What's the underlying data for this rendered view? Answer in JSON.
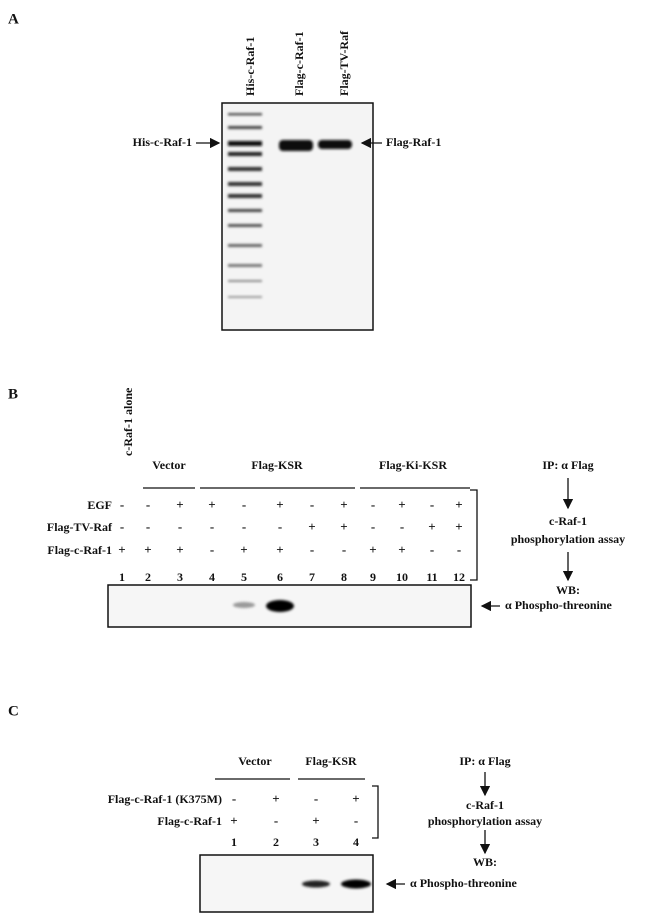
{
  "panel_a": {
    "label": "A",
    "lanes": [
      "His-c-Raf-1",
      "Flag-c-Raf-1",
      "Flag-TV-Raf"
    ],
    "left_marker": "His-c-Raf-1",
    "right_marker": "Flag-Raf-1"
  },
  "panel_b": {
    "label": "B",
    "single_lane": "c-Raf-1 alone",
    "groups": [
      "Vector",
      "Flag-KSR",
      "Flag-Ki-KSR"
    ],
    "rows": [
      {
        "name": "EGF",
        "signs": [
          "-",
          "-",
          "+",
          "+",
          "-",
          "+",
          "-",
          "+",
          "-",
          "+",
          "-",
          "+"
        ]
      },
      {
        "name": "Flag-TV-Raf",
        "signs": [
          "-",
          "-",
          "-",
          "-",
          "-",
          "-",
          "+",
          "+",
          "-",
          "-",
          "+",
          "+"
        ]
      },
      {
        "name": "Flag-c-Raf-1",
        "signs": [
          "+",
          "+",
          "+",
          "-",
          "+",
          "+",
          "-",
          "-",
          "+",
          "+",
          "-",
          "-"
        ]
      }
    ],
    "lane_numbers": [
      1,
      2,
      3,
      4,
      5,
      6,
      7,
      8,
      9,
      10,
      11,
      12
    ],
    "readout": "α Phospho-threonine",
    "workflow": [
      "IP: α Flag",
      "c-Raf-1",
      "phosphorylation assay",
      "WB:"
    ]
  },
  "panel_c": {
    "label": "C",
    "groups": [
      "Vector",
      "Flag-KSR"
    ],
    "rows": [
      {
        "name": "Flag-c-Raf-1 (K375M)",
        "signs": [
          "-",
          "+",
          "-",
          "+"
        ]
      },
      {
        "name": "Flag-c-Raf-1",
        "signs": [
          "+",
          "-",
          "+",
          "-"
        ]
      }
    ],
    "lane_numbers": [
      1,
      2,
      3,
      4
    ],
    "readout": "α Phospho-threonine",
    "workflow": [
      "IP: α Flag",
      "c-Raf-1",
      "phosphorylation assay",
      "WB:"
    ]
  }
}
